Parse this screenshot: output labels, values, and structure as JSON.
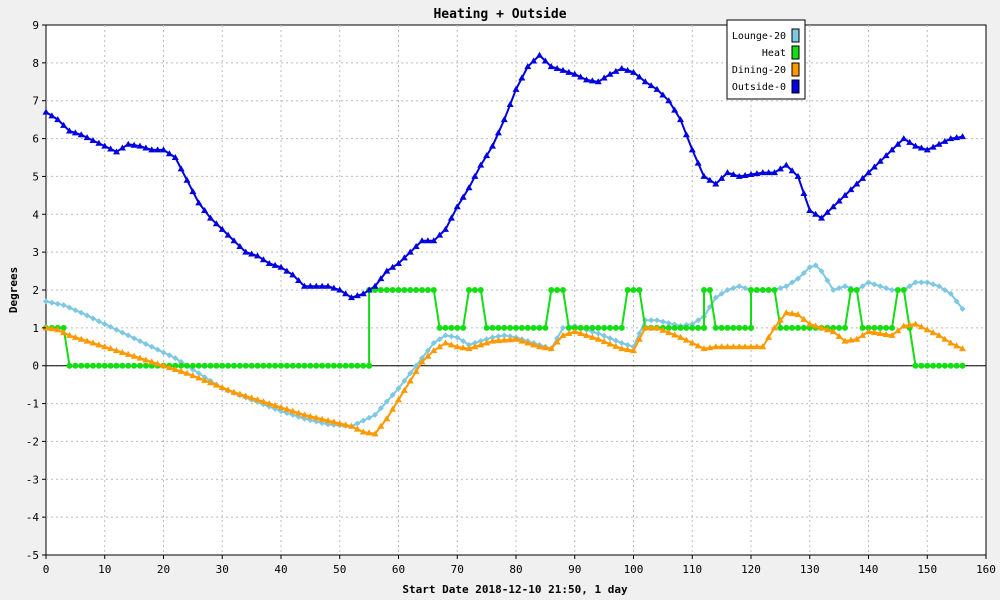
{
  "chart_data": {
    "type": "line",
    "title": "Heating + Outside",
    "xlabel": "Start Date 2018-12-10 21:50, 1 day",
    "ylabel": "Degrees",
    "xlim": [
      0,
      160
    ],
    "ylim": [
      -5,
      9
    ],
    "x_ticks": [
      0,
      10,
      20,
      30,
      40,
      50,
      60,
      70,
      80,
      90,
      100,
      110,
      120,
      130,
      140,
      150,
      160
    ],
    "y_ticks": [
      -5,
      -4,
      -3,
      -2,
      -1,
      0,
      1,
      2,
      3,
      4,
      5,
      6,
      7,
      8,
      9
    ],
    "grid": true,
    "legend_position": "top-right",
    "series": [
      {
        "name": "Lounge-20",
        "color": "#7ec8e3",
        "marker": "diamond",
        "points": [
          [
            0,
            1.7
          ],
          [
            3,
            1.6
          ],
          [
            6,
            1.4
          ],
          [
            10,
            1.1
          ],
          [
            14,
            0.8
          ],
          [
            18,
            0.5
          ],
          [
            22,
            0.2
          ],
          [
            26,
            -0.2
          ],
          [
            30,
            -0.6
          ],
          [
            35,
            -0.9
          ],
          [
            40,
            -1.2
          ],
          [
            44,
            -1.4
          ],
          [
            48,
            -1.55
          ],
          [
            52,
            -1.6
          ],
          [
            54,
            -1.45
          ],
          [
            56,
            -1.3
          ],
          [
            58,
            -0.95
          ],
          [
            60,
            -0.6
          ],
          [
            62,
            -0.2
          ],
          [
            64,
            0.2
          ],
          [
            66,
            0.6
          ],
          [
            68,
            0.8
          ],
          [
            70,
            0.75
          ],
          [
            72,
            0.55
          ],
          [
            74,
            0.65
          ],
          [
            76,
            0.75
          ],
          [
            78,
            0.8
          ],
          [
            80,
            0.75
          ],
          [
            84,
            0.55
          ],
          [
            86,
            0.45
          ],
          [
            88,
            1.0
          ],
          [
            90,
            1.05
          ],
          [
            94,
            0.85
          ],
          [
            98,
            0.6
          ],
          [
            100,
            0.5
          ],
          [
            102,
            1.2
          ],
          [
            104,
            1.2
          ],
          [
            108,
            1.05
          ],
          [
            110,
            1.1
          ],
          [
            112,
            1.3
          ],
          [
            114,
            1.8
          ],
          [
            116,
            2.0
          ],
          [
            118,
            2.1
          ],
          [
            120,
            2.0
          ],
          [
            122,
            2.0
          ],
          [
            124,
            2.0
          ],
          [
            126,
            2.1
          ],
          [
            128,
            2.3
          ],
          [
            130,
            2.6
          ],
          [
            131,
            2.65
          ],
          [
            132,
            2.5
          ],
          [
            134,
            2.0
          ],
          [
            136,
            2.1
          ],
          [
            138,
            2.0
          ],
          [
            140,
            2.2
          ],
          [
            142,
            2.1
          ],
          [
            144,
            2.0
          ],
          [
            146,
            2.0
          ],
          [
            148,
            2.2
          ],
          [
            150,
            2.2
          ],
          [
            152,
            2.1
          ],
          [
            154,
            1.9
          ],
          [
            156,
            1.5
          ]
        ]
      },
      {
        "name": "Heat",
        "color": "#14dd14",
        "marker": "circle",
        "points": [
          [
            0,
            1
          ],
          [
            3,
            1
          ],
          [
            4,
            0
          ],
          [
            55,
            0
          ],
          [
            55,
            2
          ],
          [
            66,
            2
          ],
          [
            67,
            1
          ],
          [
            71,
            1
          ],
          [
            72,
            2
          ],
          [
            74,
            2
          ],
          [
            75,
            1
          ],
          [
            85,
            1
          ],
          [
            86,
            2
          ],
          [
            88,
            2
          ],
          [
            89,
            1
          ],
          [
            98,
            1
          ],
          [
            99,
            2
          ],
          [
            101,
            2
          ],
          [
            102,
            1
          ],
          [
            112,
            1
          ],
          [
            112,
            2
          ],
          [
            113,
            2
          ],
          [
            114,
            1
          ],
          [
            120,
            1
          ],
          [
            120,
            2
          ],
          [
            124,
            2
          ],
          [
            125,
            1
          ],
          [
            136,
            1
          ],
          [
            137,
            2
          ],
          [
            138,
            2
          ],
          [
            139,
            1
          ],
          [
            144,
            1
          ],
          [
            145,
            2
          ],
          [
            146,
            2
          ],
          [
            147,
            1
          ],
          [
            148,
            0
          ],
          [
            156,
            0
          ]
        ]
      },
      {
        "name": "Dining-20",
        "color": "#ff9900",
        "marker": "triangle",
        "points": [
          [
            0,
            1.0
          ],
          [
            2,
            0.95
          ],
          [
            4,
            0.8
          ],
          [
            8,
            0.6
          ],
          [
            12,
            0.4
          ],
          [
            16,
            0.2
          ],
          [
            20,
            0.0
          ],
          [
            24,
            -0.2
          ],
          [
            28,
            -0.45
          ],
          [
            32,
            -0.7
          ],
          [
            36,
            -0.9
          ],
          [
            40,
            -1.1
          ],
          [
            44,
            -1.3
          ],
          [
            48,
            -1.45
          ],
          [
            52,
            -1.6
          ],
          [
            54,
            -1.75
          ],
          [
            56,
            -1.8
          ],
          [
            58,
            -1.4
          ],
          [
            60,
            -0.9
          ],
          [
            62,
            -0.4
          ],
          [
            64,
            0.1
          ],
          [
            66,
            0.4
          ],
          [
            68,
            0.6
          ],
          [
            70,
            0.5
          ],
          [
            72,
            0.45
          ],
          [
            74,
            0.55
          ],
          [
            76,
            0.65
          ],
          [
            80,
            0.7
          ],
          [
            84,
            0.5
          ],
          [
            86,
            0.45
          ],
          [
            88,
            0.8
          ],
          [
            90,
            0.9
          ],
          [
            94,
            0.7
          ],
          [
            98,
            0.45
          ],
          [
            100,
            0.4
          ],
          [
            102,
            1.0
          ],
          [
            104,
            1.0
          ],
          [
            108,
            0.75
          ],
          [
            110,
            0.6
          ],
          [
            112,
            0.45
          ],
          [
            114,
            0.5
          ],
          [
            118,
            0.5
          ],
          [
            122,
            0.5
          ],
          [
            124,
            1.0
          ],
          [
            126,
            1.4
          ],
          [
            128,
            1.35
          ],
          [
            130,
            1.1
          ],
          [
            132,
            1.0
          ],
          [
            134,
            0.9
          ],
          [
            136,
            0.65
          ],
          [
            138,
            0.7
          ],
          [
            140,
            0.9
          ],
          [
            142,
            0.85
          ],
          [
            144,
            0.8
          ],
          [
            146,
            1.05
          ],
          [
            148,
            1.1
          ],
          [
            150,
            0.95
          ],
          [
            152,
            0.8
          ],
          [
            154,
            0.6
          ],
          [
            156,
            0.45
          ]
        ]
      },
      {
        "name": "Outside-0",
        "color": "#0000e0",
        "marker": "triangle",
        "points": [
          [
            0,
            6.7
          ],
          [
            2,
            6.5
          ],
          [
            4,
            6.2
          ],
          [
            6,
            6.1
          ],
          [
            8,
            5.95
          ],
          [
            10,
            5.8
          ],
          [
            12,
            5.65
          ],
          [
            14,
            5.85
          ],
          [
            16,
            5.8
          ],
          [
            18,
            5.7
          ],
          [
            20,
            5.7
          ],
          [
            22,
            5.5
          ],
          [
            24,
            4.9
          ],
          [
            26,
            4.3
          ],
          [
            28,
            3.9
          ],
          [
            30,
            3.6
          ],
          [
            32,
            3.3
          ],
          [
            34,
            3.0
          ],
          [
            36,
            2.9
          ],
          [
            38,
            2.7
          ],
          [
            40,
            2.6
          ],
          [
            42,
            2.4
          ],
          [
            44,
            2.1
          ],
          [
            46,
            2.1
          ],
          [
            48,
            2.1
          ],
          [
            50,
            2.0
          ],
          [
            52,
            1.8
          ],
          [
            54,
            1.9
          ],
          [
            56,
            2.1
          ],
          [
            58,
            2.5
          ],
          [
            60,
            2.7
          ],
          [
            62,
            3.0
          ],
          [
            64,
            3.3
          ],
          [
            66,
            3.3
          ],
          [
            68,
            3.6
          ],
          [
            70,
            4.2
          ],
          [
            72,
            4.7
          ],
          [
            74,
            5.3
          ],
          [
            76,
            5.8
          ],
          [
            78,
            6.5
          ],
          [
            80,
            7.3
          ],
          [
            82,
            7.9
          ],
          [
            84,
            8.2
          ],
          [
            86,
            7.9
          ],
          [
            88,
            7.8
          ],
          [
            90,
            7.7
          ],
          [
            92,
            7.55
          ],
          [
            94,
            7.5
          ],
          [
            96,
            7.7
          ],
          [
            98,
            7.85
          ],
          [
            100,
            7.75
          ],
          [
            102,
            7.5
          ],
          [
            104,
            7.3
          ],
          [
            106,
            7.0
          ],
          [
            108,
            6.5
          ],
          [
            110,
            5.7
          ],
          [
            112,
            5.0
          ],
          [
            114,
            4.8
          ],
          [
            116,
            5.1
          ],
          [
            118,
            5.0
          ],
          [
            120,
            5.05
          ],
          [
            122,
            5.1
          ],
          [
            124,
            5.1
          ],
          [
            126,
            5.3
          ],
          [
            128,
            5.0
          ],
          [
            130,
            4.1
          ],
          [
            132,
            3.9
          ],
          [
            134,
            4.2
          ],
          [
            136,
            4.5
          ],
          [
            138,
            4.8
          ],
          [
            140,
            5.1
          ],
          [
            142,
            5.4
          ],
          [
            144,
            5.7
          ],
          [
            146,
            6.0
          ],
          [
            148,
            5.8
          ],
          [
            150,
            5.7
          ],
          [
            152,
            5.85
          ],
          [
            154,
            6.0
          ],
          [
            156,
            6.05
          ]
        ]
      }
    ],
    "baseline": 0
  }
}
